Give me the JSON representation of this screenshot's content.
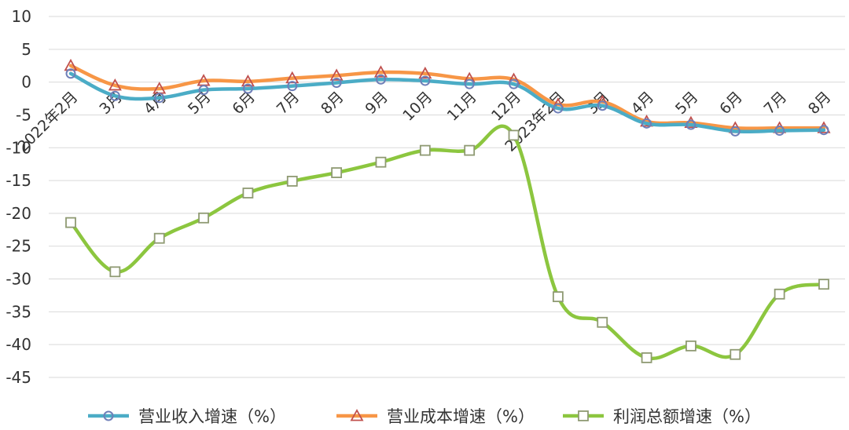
{
  "chart_data": {
    "type": "line",
    "title": "",
    "xlabel": "",
    "ylabel": "",
    "ylim": [
      -45,
      10
    ],
    "yticks": [
      10,
      5,
      0,
      -5,
      -10,
      -15,
      -20,
      -25,
      -30,
      -35,
      -40,
      -45
    ],
    "grid": "horizontal",
    "legend": "bottom",
    "categories": [
      "2022年2月",
      "3月",
      "4月",
      "5月",
      "6月",
      "7月",
      "8月",
      "9月",
      "10月",
      "11月",
      "12月",
      "2023年2月",
      "3月",
      "4月",
      "5月",
      "6月",
      "7月",
      "8月"
    ],
    "series": [
      {
        "name": "营业收入增速（%）",
        "color": "#4bacc6",
        "marker": "circle",
        "values": [
          1.3,
          -2.1,
          -2.4,
          -1.2,
          -1.0,
          -0.6,
          -0.1,
          0.4,
          0.2,
          -0.3,
          -0.3,
          -4.0,
          -3.6,
          -6.3,
          -6.5,
          -7.5,
          -7.4,
          -7.3
        ]
      },
      {
        "name": "营业成本增速（%）",
        "color": "#f79646",
        "marker": "triangle",
        "values": [
          2.5,
          -0.5,
          -1.0,
          0.2,
          0.1,
          0.6,
          1.0,
          1.5,
          1.3,
          0.5,
          0.4,
          -3.4,
          -3.0,
          -6.0,
          -6.2,
          -7.0,
          -7.0,
          -7.0
        ]
      },
      {
        "name": "利润总额增速（%）",
        "color": "#8cc63f",
        "marker": "square",
        "values": [
          -21.4,
          -28.9,
          -23.8,
          -20.7,
          -16.9,
          -15.1,
          -13.8,
          -12.2,
          -10.4,
          -10.4,
          -8.1,
          -32.7,
          -36.6,
          -42.0,
          -40.2,
          -41.5,
          -32.3,
          -30.8
        ]
      }
    ]
  }
}
